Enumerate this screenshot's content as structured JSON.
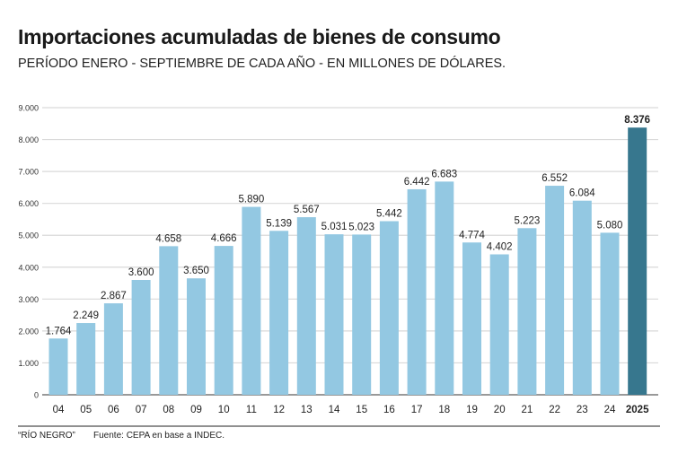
{
  "title": "Importaciones acumuladas de bienes de consumo",
  "subtitle": "PERÍODO ENERO - SEPTIEMBRE DE CADA AÑO - EN MILLONES DE DÓLARES.",
  "footer": {
    "credit": "“RÍO NEGRO”",
    "source": "Fuente: CEPA en base a INDEC."
  },
  "colors": {
    "bar": "#93c8e2",
    "highlight": "#37778e",
    "grid": "#d9d9d9"
  },
  "chart_data": {
    "type": "bar",
    "title": "Importaciones acumuladas de bienes de consumo",
    "categories": [
      "04",
      "05",
      "06",
      "07",
      "08",
      "09",
      "10",
      "11",
      "12",
      "13",
      "14",
      "15",
      "16",
      "17",
      "18",
      "19",
      "20",
      "21",
      "22",
      "23",
      "24",
      "2025"
    ],
    "values": [
      1764,
      2249,
      2867,
      3600,
      4658,
      3650,
      4666,
      5890,
      5139,
      5567,
      5031,
      5023,
      5442,
      6442,
      6683,
      4774,
      4402,
      5223,
      6552,
      6084,
      5080,
      8376
    ],
    "value_labels": [
      "1.764",
      "2.249",
      "2.867",
      "3.600",
      "4.658",
      "3.650",
      "4.666",
      "5.890",
      "5.139",
      "5.567",
      "5.031",
      "5.023",
      "5.442",
      "6.442",
      "6.683",
      "4.774",
      "4.402",
      "5.223",
      "6.552",
      "6.084",
      "5.080",
      "8.376"
    ],
    "yticks": [
      0,
      1000,
      2000,
      3000,
      4000,
      5000,
      6000,
      7000,
      8000,
      9000
    ],
    "ytick_labels": [
      "0",
      "1.000",
      "2.000",
      "3.000",
      "4.000",
      "5.000",
      "6.000",
      "7.000",
      "8.000",
      "9.000"
    ],
    "ylim": [
      0,
      9000
    ],
    "highlight_index": 21,
    "grid": true,
    "xlabel": "",
    "ylabel": ""
  }
}
